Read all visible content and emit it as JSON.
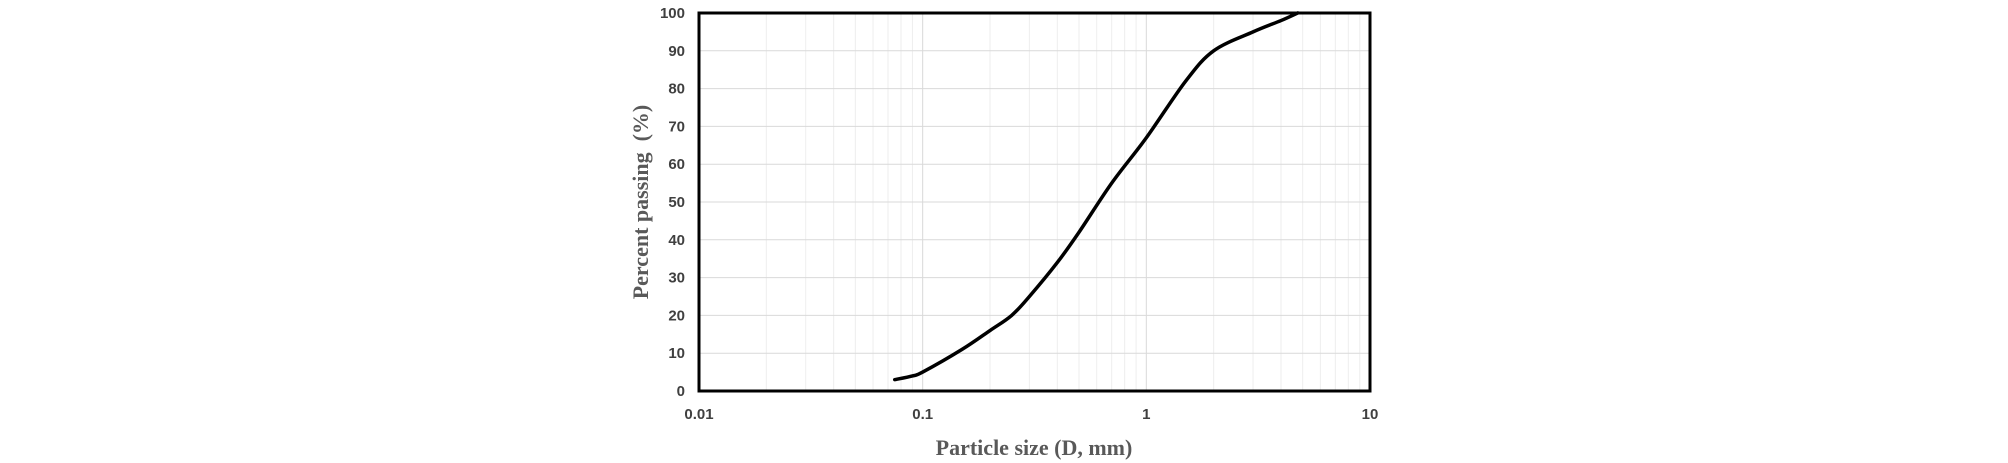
{
  "chart_data": {
    "type": "line",
    "title": "",
    "xlabel": "Particle size (D, mm)",
    "ylabel": "Percent passing  (%)",
    "x_scale": "log",
    "xlim": [
      0.01,
      10
    ],
    "ylim": [
      0,
      100
    ],
    "grid": true,
    "x_ticks": [
      "0.01",
      "0.1",
      "1",
      "10"
    ],
    "y_ticks": [
      "0",
      "10",
      "20",
      "30",
      "40",
      "50",
      "60",
      "70",
      "80",
      "90",
      "100"
    ],
    "colors": {
      "line": "#000000",
      "frame": "#000000"
    },
    "series": [
      {
        "x": [
          0.075,
          0.09,
          0.1,
          0.15,
          0.2,
          0.25,
          0.3,
          0.4,
          0.5,
          0.7,
          1.0,
          1.5,
          2.0,
          3.0,
          4.0,
          4.75
        ],
        "y": [
          3,
          4,
          5,
          11,
          16,
          20,
          25,
          34,
          42,
          55,
          67,
          82,
          90,
          95,
          98,
          100
        ]
      }
    ]
  }
}
